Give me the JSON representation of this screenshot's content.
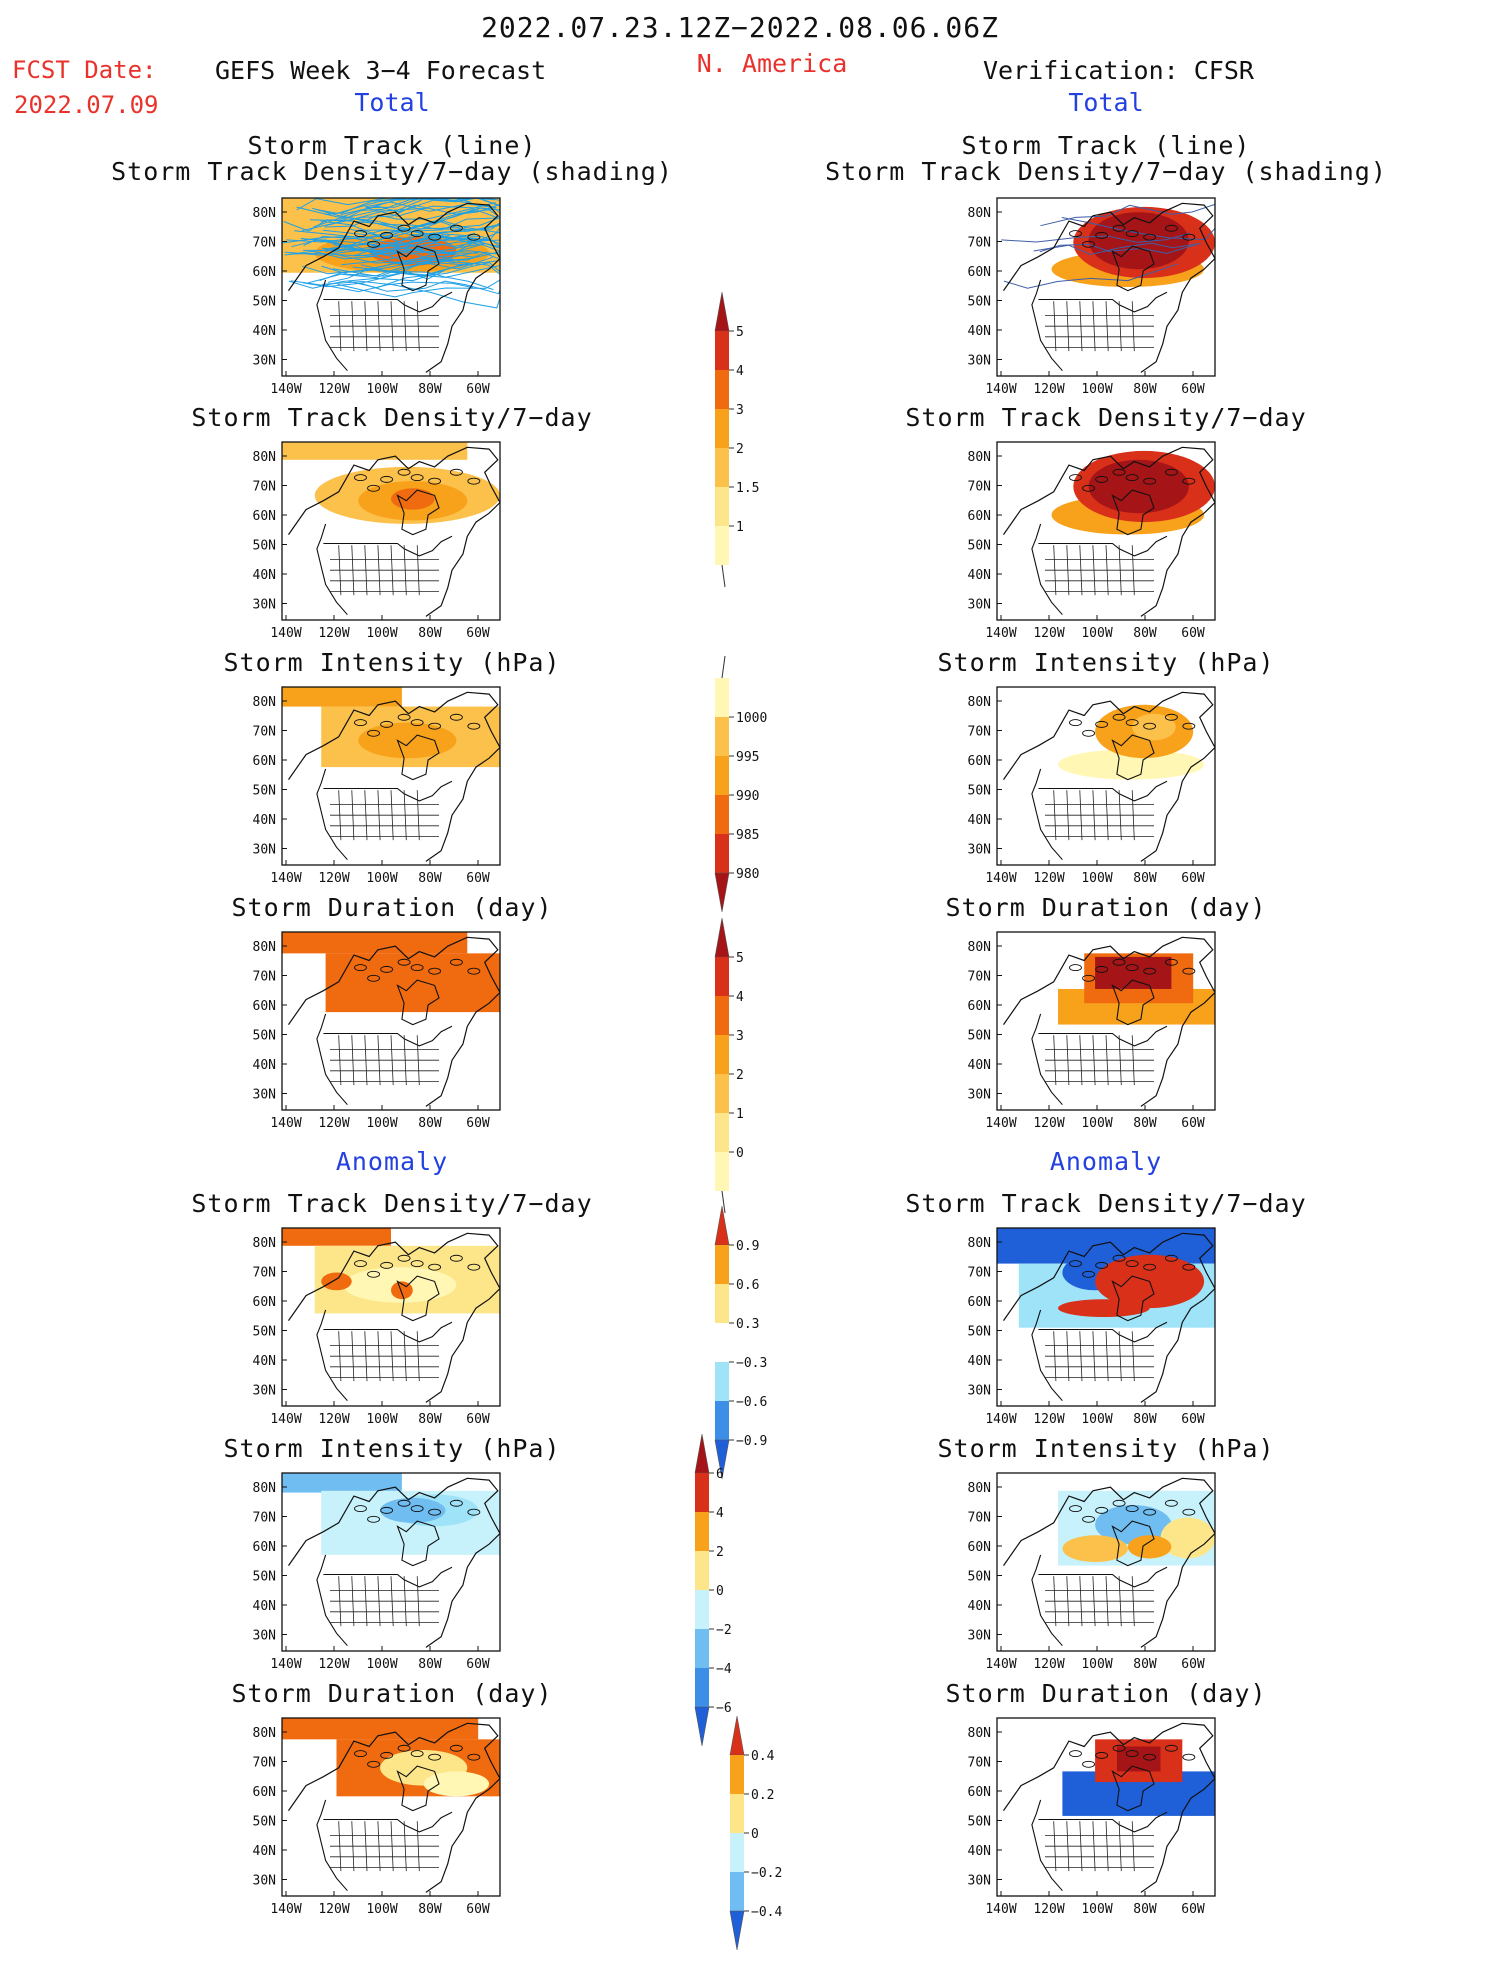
{
  "header": {
    "date_range": "2022.07.23.12Z−2022.08.06.06Z",
    "fcst_label": "FCST Date:",
    "fcst_date": "2022.07.09",
    "forecast_title": "GEFS Week 3−4 Forecast",
    "region": "N. America",
    "verification_title": "Verification: CFSR",
    "left_subtitle": "Total",
    "right_subtitle": "Total"
  },
  "section_anomaly": {
    "left": "Anomaly",
    "right": "Anomaly"
  },
  "panel_titles": {
    "track_line": "Storm Track (line)",
    "track_shading": "Storm Track Density/7−day (shading)",
    "density": "Storm Track Density/7−day",
    "intensity": "Storm Intensity (hPa)",
    "duration": "Storm Duration (day)"
  },
  "map_axes": {
    "lat_labels": [
      "80N",
      "70N",
      "60N",
      "50N",
      "40N",
      "30N"
    ],
    "lon_labels": [
      "140W",
      "120W",
      "100W",
      "80W",
      "60W"
    ]
  },
  "colorbars": {
    "density_total": [
      "1",
      "1.5",
      "2",
      "3",
      "4",
      "5"
    ],
    "intensity_total": [
      "1000",
      "995",
      "990",
      "985",
      "980"
    ],
    "duration_total": [
      "0",
      "1",
      "2",
      "3",
      "4",
      "5"
    ],
    "density_anom": [
      "−0.9",
      "−0.6",
      "−0.3",
      "0.3",
      "0.6",
      "0.9"
    ],
    "intensity_anom": [
      "−6",
      "−4",
      "−2",
      "0",
      "2",
      "4",
      "6"
    ],
    "duration_anom": [
      "−0.4",
      "−0.2",
      "0",
      "0.2",
      "0.4"
    ]
  },
  "colors": {
    "title_red": "#e8322b",
    "title_blue": "#2340e0",
    "track_line": "#1ea0e6",
    "warm": [
      "#fff7b3",
      "#fde68a",
      "#fbc14a",
      "#f8a11a",
      "#f06a10",
      "#d9301a",
      "#a51416"
    ],
    "cool": [
      "#c8f2fb",
      "#9ee3f8",
      "#6fbdf1",
      "#3d8ee6",
      "#1f5fd8"
    ]
  }
}
